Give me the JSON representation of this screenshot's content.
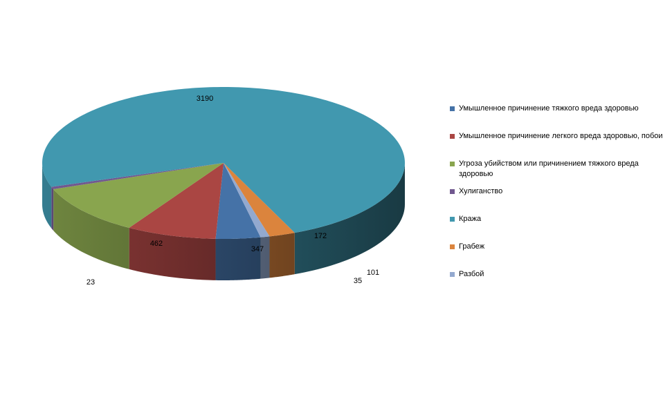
{
  "chart_data": {
    "type": "pie",
    "title": "",
    "slices": [
      {
        "name": "Умышленное причинение тяжкого вреда здоровью",
        "value": 172,
        "color": "#4572A7"
      },
      {
        "name": "Умышленное причинение легкого вреда здоровью, побои",
        "value": 347,
        "color": "#AA4643"
      },
      {
        "name": "Угроза убийством или причинением тяжкого вреда здоровью",
        "value": 462,
        "color": "#89A54E"
      },
      {
        "name": "Хулиганство",
        "value": 23,
        "color": "#71588F"
      },
      {
        "name": "Кража",
        "value": 3190,
        "color": "#4198AF"
      },
      {
        "name": "Грабеж",
        "value": 101,
        "color": "#DB843D"
      },
      {
        "name": "Разбой",
        "value": 35,
        "color": "#93A9CF"
      }
    ],
    "legend_position": "right",
    "style": "3d"
  }
}
